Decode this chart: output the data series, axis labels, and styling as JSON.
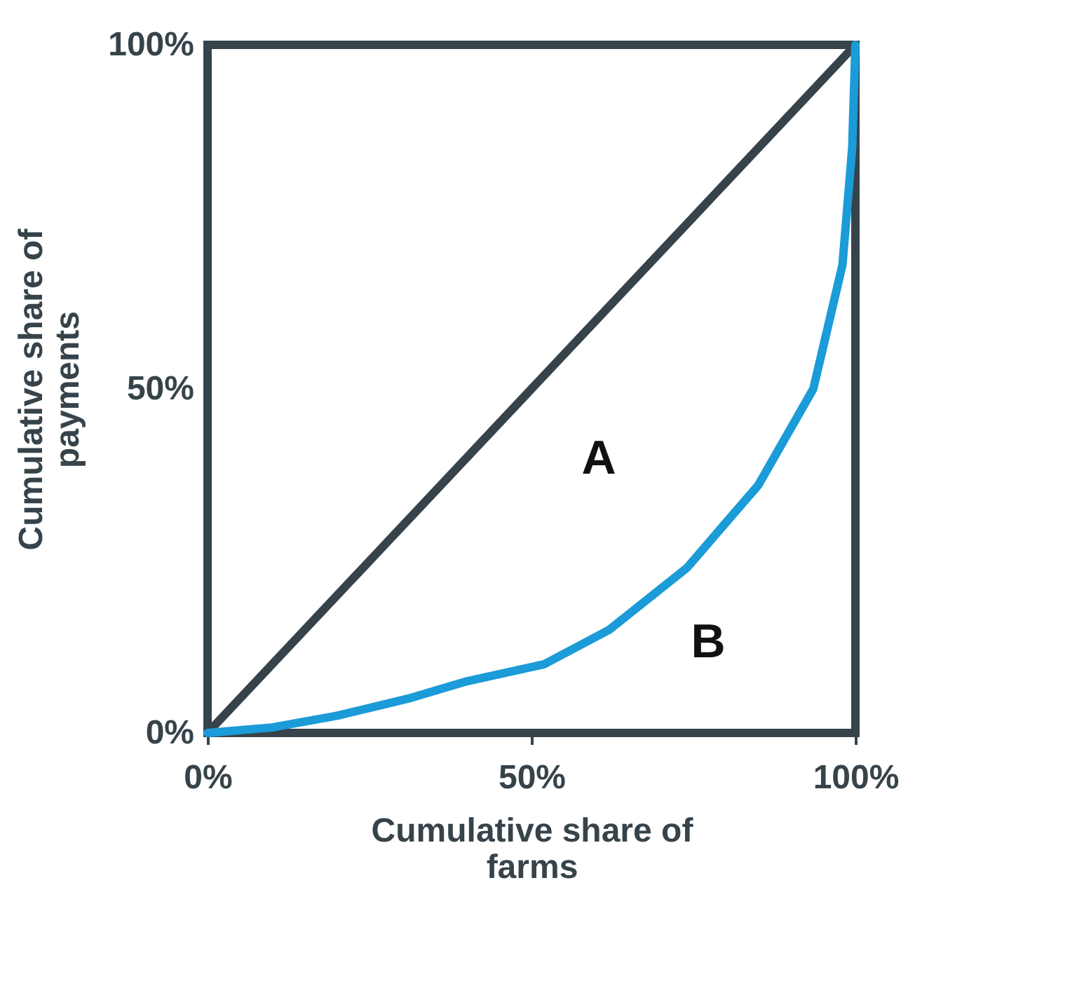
{
  "chart_data": {
    "type": "line",
    "xlabel": "Cumulative share of farms",
    "ylabel": "Cumulative share of payments",
    "xlim": [
      0,
      1
    ],
    "ylim": [
      0,
      1
    ],
    "xticks": [
      {
        "value": 0,
        "label": "0%"
      },
      {
        "value": 0.5,
        "label": "50%"
      },
      {
        "value": 1,
        "label": "100%"
      }
    ],
    "yticks": [
      {
        "value": 0,
        "label": "0%"
      },
      {
        "value": 0.5,
        "label": "50%"
      },
      {
        "value": 1,
        "label": "100%"
      }
    ],
    "grid": false,
    "legend": false,
    "marker": "none",
    "line_style": "solid",
    "series": [
      {
        "color": "#37434a",
        "x": [
          0,
          1
        ],
        "values": [
          0,
          1
        ]
      },
      {
        "color": "#1b9bd7",
        "x": [
          0,
          0.1,
          0.2,
          0.31,
          0.4,
          0.52,
          0.62,
          0.74,
          0.85,
          0.935,
          0.98,
          0.995,
          1
        ],
        "values": [
          0,
          0.008,
          0.025,
          0.05,
          0.075,
          0.1,
          0.15,
          0.24,
          0.36,
          0.5,
          0.68,
          0.85,
          1
        ]
      }
    ],
    "annotations": [
      "A",
      "B"
    ]
  }
}
